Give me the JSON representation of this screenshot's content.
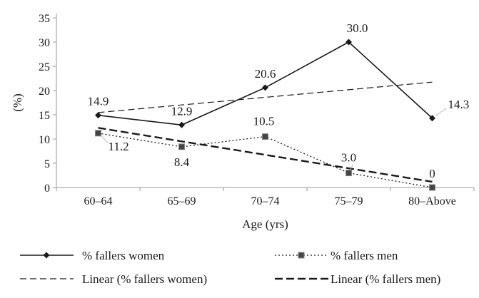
{
  "chart_data": {
    "type": "line",
    "categories": [
      "60–64",
      "65–69",
      "70–74",
      "75–79",
      "80–Above"
    ],
    "series": [
      {
        "name": "% fallers women",
        "values": [
          14.9,
          12.9,
          20.6,
          30.0,
          14.3
        ],
        "labels": [
          "14.9",
          "12.9",
          "20.6",
          "30.0",
          "14.3"
        ],
        "color": "#1a1a1a",
        "style": "solid",
        "marker": "diamond"
      },
      {
        "name": "% fallers men",
        "values": [
          11.2,
          8.4,
          10.5,
          3.0,
          0
        ],
        "labels": [
          "11.2",
          "8.4",
          "10.5",
          "3.0",
          "0"
        ],
        "color": "#1a1a1a",
        "style": "dotted",
        "marker": "square"
      }
    ],
    "trendlines": [
      {
        "name": "Linear (% fallers women)",
        "of": "% fallers women",
        "values": [
          15.46,
          17.03,
          18.6,
          20.17,
          21.74
        ],
        "style": "dashed-thin"
      },
      {
        "name": "Linear (% fallers men)",
        "of": "% fallers men",
        "values": [
          12.3,
          9.52,
          6.74,
          3.96,
          1.18
        ],
        "style": "dashed-thick"
      }
    ],
    "xlabel": "Age (yrs)",
    "ylabel": "(%)",
    "ylim": [
      0,
      35
    ],
    "yticks": [
      "0",
      "5",
      "10",
      "15",
      "20",
      "25",
      "30",
      "35"
    ],
    "grid": false,
    "legend_position": "bottom"
  }
}
